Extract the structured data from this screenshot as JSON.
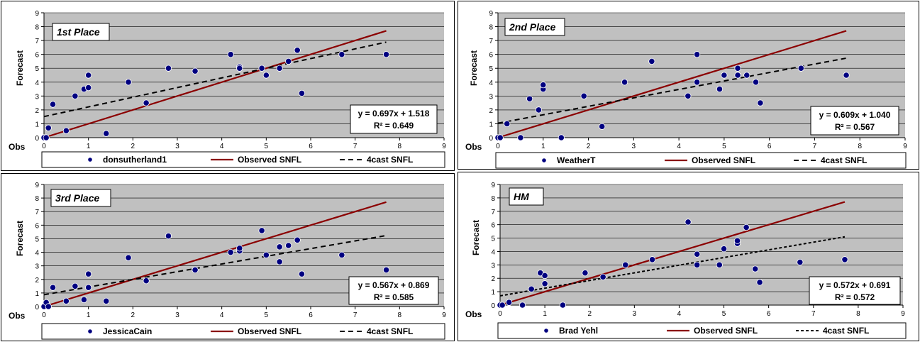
{
  "colors": {
    "plot_bg": "#c0c0c0",
    "points": "#000080",
    "observed_line": "#8b0000",
    "forecast_line": "#000000"
  },
  "chart_data": [
    {
      "type": "scatter",
      "title": "1st Place",
      "xlabel": "Obs",
      "ylabel": "Forecast",
      "xlim": [
        0,
        9
      ],
      "ylim": [
        0,
        9
      ],
      "grid": true,
      "legend_position": "bottom",
      "equation": "y = 0.697x + 1.518",
      "r2": "R² = 0.649",
      "series": [
        {
          "name": "donsutherland1",
          "marker": "circle",
          "points": [
            [
              0,
              0
            ],
            [
              0.05,
              0
            ],
            [
              0.1,
              0.7
            ],
            [
              0.2,
              2.4
            ],
            [
              0.5,
              0.5
            ],
            [
              0.7,
              3.0
            ],
            [
              0.9,
              3.5
            ],
            [
              1.0,
              3.6
            ],
            [
              1.0,
              4.5
            ],
            [
              1.4,
              0.3
            ],
            [
              1.9,
              4.0
            ],
            [
              2.3,
              2.5
            ],
            [
              2.8,
              5.0
            ],
            [
              3.4,
              4.8
            ],
            [
              4.2,
              6.0
            ],
            [
              4.4,
              5.1
            ],
            [
              4.4,
              5.0
            ],
            [
              4.9,
              5.0
            ],
            [
              5.0,
              4.5
            ],
            [
              5.3,
              5.0
            ],
            [
              5.5,
              5.5
            ],
            [
              5.7,
              6.3
            ],
            [
              5.8,
              3.2
            ],
            [
              6.7,
              6.0
            ],
            [
              7.7,
              6.0
            ]
          ]
        },
        {
          "name": "Observed SNFL",
          "kind": "line",
          "x": [
            0,
            7.7
          ],
          "y": [
            0,
            7.7
          ]
        },
        {
          "name": "4cast SNFL",
          "kind": "trend",
          "x": [
            0,
            7.7
          ],
          "y": [
            1.518,
            6.885
          ]
        }
      ]
    },
    {
      "type": "scatter",
      "title": "2nd Place",
      "xlabel": "Obs",
      "ylabel": "Forecast",
      "xlim": [
        0,
        9
      ],
      "ylim": [
        0,
        9
      ],
      "grid": true,
      "legend_position": "bottom",
      "equation": "y = 0.609x + 1.040",
      "r2": "R² = 0.567",
      "series": [
        {
          "name": "WeatherT",
          "marker": "circle",
          "points": [
            [
              0,
              0
            ],
            [
              0.05,
              0
            ],
            [
              0.2,
              1.0
            ],
            [
              0.5,
              0
            ],
            [
              0.7,
              2.8
            ],
            [
              0.9,
              2.0
            ],
            [
              1.0,
              3.5
            ],
            [
              1.0,
              3.8
            ],
            [
              1.4,
              0
            ],
            [
              1.9,
              3.0
            ],
            [
              2.3,
              0.8
            ],
            [
              2.8,
              4.0
            ],
            [
              3.4,
              5.5
            ],
            [
              4.2,
              3.0
            ],
            [
              4.4,
              4.0
            ],
            [
              4.4,
              6.0
            ],
            [
              4.9,
              3.5
            ],
            [
              5.0,
              4.5
            ],
            [
              5.3,
              4.5
            ],
            [
              5.3,
              5.0
            ],
            [
              5.5,
              4.5
            ],
            [
              5.7,
              4.0
            ],
            [
              5.8,
              2.5
            ],
            [
              6.7,
              5.0
            ],
            [
              7.7,
              4.5
            ]
          ]
        },
        {
          "name": "Observed SNFL",
          "kind": "line",
          "x": [
            0,
            7.7
          ],
          "y": [
            0,
            7.7
          ]
        },
        {
          "name": "4cast SNFL",
          "kind": "trend",
          "x": [
            0,
            7.7
          ],
          "y": [
            1.04,
            5.729
          ]
        }
      ]
    },
    {
      "type": "scatter",
      "title": "3rd Place",
      "xlabel": "Obs",
      "ylabel": "Forecast",
      "xlim": [
        0,
        9
      ],
      "ylim": [
        0,
        9
      ],
      "grid": true,
      "legend_position": "bottom",
      "equation": "y = 0.567x + 0.869",
      "r2": "R² = 0.585",
      "series": [
        {
          "name": "JessicaCain",
          "marker": "circle",
          "points": [
            [
              0,
              0
            ],
            [
              0.05,
              0.3
            ],
            [
              0.1,
              0
            ],
            [
              0.2,
              1.4
            ],
            [
              0.5,
              0.4
            ],
            [
              0.7,
              1.5
            ],
            [
              0.9,
              0.5
            ],
            [
              1.0,
              1.4
            ],
            [
              1.0,
              2.4
            ],
            [
              1.4,
              0.4
            ],
            [
              1.9,
              3.6
            ],
            [
              2.3,
              1.9
            ],
            [
              2.8,
              5.2
            ],
            [
              3.4,
              2.7
            ],
            [
              4.2,
              4.0
            ],
            [
              4.4,
              4.1
            ],
            [
              4.4,
              4.3
            ],
            [
              4.9,
              5.6
            ],
            [
              5.0,
              3.8
            ],
            [
              5.3,
              4.4
            ],
            [
              5.3,
              3.3
            ],
            [
              5.5,
              4.5
            ],
            [
              5.7,
              4.9
            ],
            [
              5.8,
              2.4
            ],
            [
              6.7,
              3.8
            ],
            [
              7.7,
              2.7
            ]
          ]
        },
        {
          "name": "Observed SNFL",
          "kind": "line",
          "x": [
            0,
            7.7
          ],
          "y": [
            0,
            7.7
          ]
        },
        {
          "name": "4cast SNFL",
          "kind": "trend",
          "x": [
            0,
            7.7
          ],
          "y": [
            0.869,
            5.235
          ]
        }
      ]
    },
    {
      "type": "scatter",
      "title": "HM",
      "xlabel": "Obs",
      "ylabel": "Forecast",
      "xlim": [
        0,
        9
      ],
      "ylim": [
        0,
        9
      ],
      "grid": true,
      "legend_position": "bottom",
      "equation": "y = 0.572x + 0.691",
      "r2": "R² = 0.572",
      "series": [
        {
          "name": "Brad Yehl",
          "marker": "circle",
          "points": [
            [
              0,
              0
            ],
            [
              0.05,
              0
            ],
            [
              0.2,
              0.2
            ],
            [
              0.5,
              0
            ],
            [
              0.7,
              1.2
            ],
            [
              0.9,
              2.4
            ],
            [
              1.0,
              1.6
            ],
            [
              1.0,
              2.2
            ],
            [
              1.4,
              0
            ],
            [
              1.9,
              2.4
            ],
            [
              2.3,
              2.1
            ],
            [
              2.8,
              3.0
            ],
            [
              3.4,
              3.4
            ],
            [
              4.2,
              6.2
            ],
            [
              4.4,
              3.8
            ],
            [
              4.4,
              3.0
            ],
            [
              4.9,
              3.0
            ],
            [
              5.0,
              4.2
            ],
            [
              5.3,
              4.6
            ],
            [
              5.3,
              4.8
            ],
            [
              5.5,
              5.8
            ],
            [
              5.7,
              2.7
            ],
            [
              5.8,
              1.7
            ],
            [
              6.7,
              3.2
            ],
            [
              7.7,
              3.4
            ]
          ]
        },
        {
          "name": "Observed SNFL",
          "kind": "line",
          "x": [
            0,
            7.7
          ],
          "y": [
            0,
            7.7
          ]
        },
        {
          "name": "4cast SNFL",
          "kind": "trend",
          "x": [
            0,
            7.7
          ],
          "y": [
            0.691,
            5.095
          ]
        }
      ]
    }
  ]
}
